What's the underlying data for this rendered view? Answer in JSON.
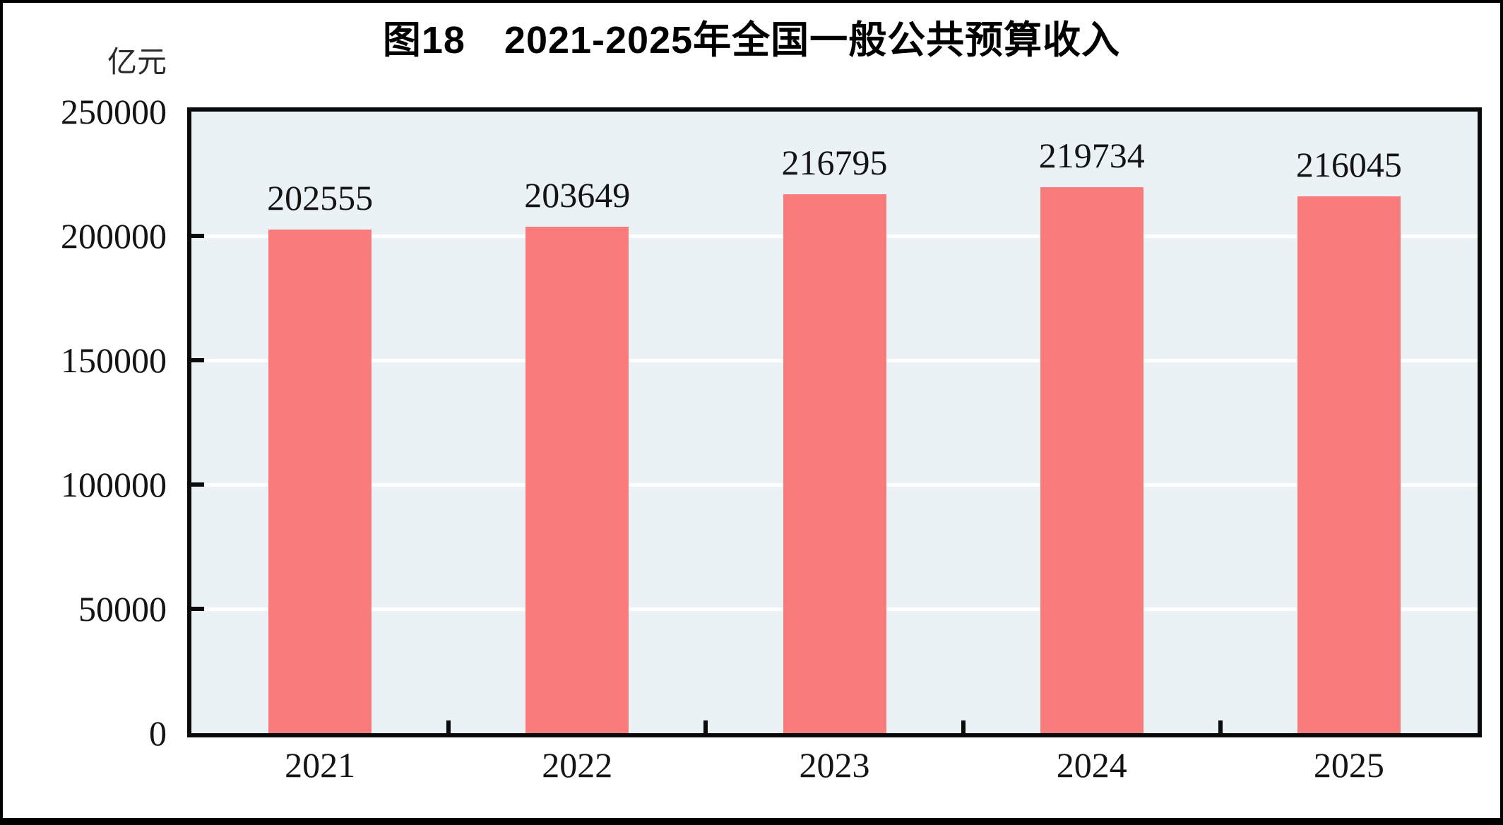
{
  "figure": {
    "background": "#FFFFFF",
    "outer_border_color": "#000000"
  },
  "chart_data": {
    "type": "bar",
    "title": "图18　2021-2025年全国一般公共预算收入",
    "unit_label": "亿元",
    "categories": [
      "2021",
      "2022",
      "2023",
      "2024",
      "2025"
    ],
    "values": [
      202555,
      203649,
      216795,
      219734,
      216045
    ],
    "value_labels": [
      "202555",
      "203649",
      "216795",
      "219734",
      "216045"
    ],
    "ylim": [
      0,
      250000
    ],
    "yticks": [
      0,
      50000,
      100000,
      150000,
      200000,
      250000
    ],
    "ytick_labels": [
      "0",
      "50000",
      "100000",
      "150000",
      "200000",
      "250000"
    ],
    "grid": "horizontal",
    "legend": "none",
    "colors": {
      "bar": "#FA7B7B",
      "plot_background": "#EBF2F6",
      "gridline": "#FFFFFF",
      "axis": "#0A0A0A",
      "text": "#141414"
    }
  }
}
